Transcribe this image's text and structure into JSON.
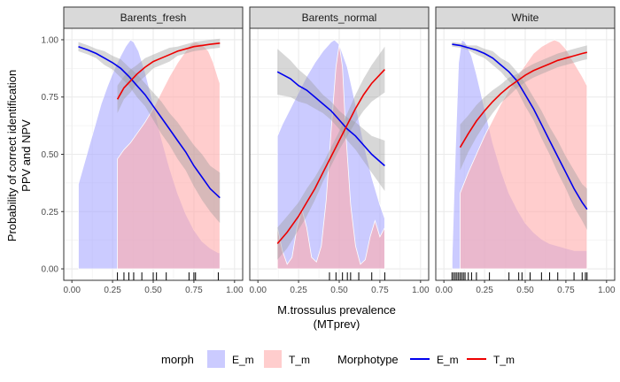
{
  "chart_data": {
    "type": "line",
    "xlabel_line1": "M.trossulus prevalence",
    "xlabel_line2": "(MTprev)",
    "ylabel_line1": "Probability of correct identification",
    "ylabel_line2": "PPV and NPV",
    "xlim": [
      -0.05,
      1.05
    ],
    "ylim": [
      -0.05,
      1.05
    ],
    "x_ticks": [
      0,
      0.25,
      0.5,
      0.75,
      1
    ],
    "x_tick_labels": [
      "0.00",
      "0.25",
      "0.50",
      "0.75",
      "1.00"
    ],
    "y_ticks": [
      0,
      0.25,
      0.5,
      0.75,
      1
    ],
    "y_tick_labels": [
      "0.00",
      "0.25",
      "0.50",
      "0.75",
      "1.00"
    ],
    "grid": true,
    "colors": {
      "E_m_line": "#0000ee",
      "T_m_line": "#ee0000",
      "E_m_fill": "#a8a8ff",
      "T_m_fill": "#ffacac",
      "ribbon": "#9a9a9a",
      "strip_bg": "#d9d9d9",
      "grid": "#ebebeb"
    },
    "legend": {
      "position": "bottom",
      "fill_title": "morph",
      "fill_entries": [
        "E_m",
        "T_m"
      ],
      "line_title": "Morphotype",
      "line_entries": [
        "E_m",
        "T_m"
      ]
    },
    "panels": [
      {
        "title": "Barents_fresh",
        "rug": [
          0.28,
          0.32,
          0.35,
          0.38,
          0.43,
          0.5,
          0.52,
          0.58,
          0.72,
          0.75,
          0.76,
          0.9
        ],
        "density_E": {
          "x": [
            0.04,
            0.06,
            0.1,
            0.14,
            0.18,
            0.22,
            0.26,
            0.3,
            0.33,
            0.36,
            0.38,
            0.41,
            0.45,
            0.5,
            0.55,
            0.6,
            0.65,
            0.7,
            0.75,
            0.8,
            0.85,
            0.9,
            0.91
          ],
          "y": [
            0.37,
            0.42,
            0.52,
            0.62,
            0.72,
            0.8,
            0.87,
            0.93,
            0.97,
            1.0,
            0.99,
            0.95,
            0.86,
            0.72,
            0.57,
            0.44,
            0.33,
            0.24,
            0.17,
            0.12,
            0.09,
            0.07,
            0.07
          ]
        },
        "density_T": {
          "x": [
            0.28,
            0.32,
            0.36,
            0.4,
            0.45,
            0.5,
            0.55,
            0.6,
            0.65,
            0.7,
            0.73,
            0.76,
            0.8,
            0.84,
            0.87,
            0.9,
            0.91
          ],
          "y": [
            0.48,
            0.52,
            0.55,
            0.59,
            0.64,
            0.7,
            0.77,
            0.84,
            0.9,
            0.95,
            0.98,
            0.99,
            0.98,
            0.95,
            0.9,
            0.83,
            0.81
          ]
        },
        "line_E": {
          "x": [
            0.04,
            0.1,
            0.15,
            0.2,
            0.25,
            0.3,
            0.35,
            0.4,
            0.45,
            0.5,
            0.55,
            0.6,
            0.65,
            0.7,
            0.75,
            0.8,
            0.85,
            0.91
          ],
          "y": [
            0.97,
            0.955,
            0.94,
            0.92,
            0.9,
            0.875,
            0.84,
            0.8,
            0.76,
            0.71,
            0.66,
            0.61,
            0.56,
            0.51,
            0.45,
            0.4,
            0.35,
            0.31
          ],
          "ci": [
            0.02,
            0.02,
            0.02,
            0.03,
            0.03,
            0.04,
            0.04,
            0.05,
            0.05,
            0.06,
            0.07,
            0.07,
            0.08,
            0.08,
            0.09,
            0.1,
            0.1,
            0.11
          ]
        },
        "line_T": {
          "x": [
            0.28,
            0.32,
            0.36,
            0.4,
            0.45,
            0.5,
            0.55,
            0.6,
            0.65,
            0.7,
            0.75,
            0.8,
            0.85,
            0.91
          ],
          "y": [
            0.74,
            0.79,
            0.82,
            0.85,
            0.88,
            0.905,
            0.92,
            0.935,
            0.95,
            0.96,
            0.97,
            0.975,
            0.98,
            0.985
          ],
          "ci": [
            0.06,
            0.05,
            0.05,
            0.04,
            0.04,
            0.03,
            0.03,
            0.03,
            0.02,
            0.02,
            0.02,
            0.02,
            0.02,
            0.02
          ]
        }
      },
      {
        "title": "Barents_normal",
        "rug": [
          0.44,
          0.48,
          0.52,
          0.55,
          0.57,
          0.62,
          0.7,
          0.78
        ],
        "density_E": {
          "x": [
            0.12,
            0.15,
            0.2,
            0.25,
            0.3,
            0.35,
            0.4,
            0.45,
            0.47,
            0.5,
            0.55,
            0.6,
            0.65,
            0.7,
            0.75,
            0.78
          ],
          "y": [
            0.58,
            0.63,
            0.7,
            0.77,
            0.84,
            0.9,
            0.95,
            0.99,
            1.0,
            0.98,
            0.88,
            0.72,
            0.55,
            0.4,
            0.28,
            0.22
          ]
        },
        "density_T": {
          "x": [
            0.12,
            0.15,
            0.18,
            0.21,
            0.24,
            0.27,
            0.3,
            0.33,
            0.36,
            0.39,
            0.42,
            0.45,
            0.48,
            0.5,
            0.52,
            0.54,
            0.57,
            0.6,
            0.63,
            0.66,
            0.69,
            0.72,
            0.75,
            0.78
          ],
          "y": [
            0.18,
            0.08,
            0.02,
            0.05,
            0.18,
            0.26,
            0.18,
            0.05,
            0.03,
            0.1,
            0.3,
            0.6,
            0.88,
            0.98,
            0.88,
            0.6,
            0.28,
            0.1,
            0.02,
            0.04,
            0.14,
            0.21,
            0.14,
            0.18
          ]
        },
        "line_E": {
          "x": [
            0.12,
            0.2,
            0.25,
            0.3,
            0.35,
            0.4,
            0.45,
            0.5,
            0.55,
            0.6,
            0.65,
            0.7,
            0.78
          ],
          "y": [
            0.86,
            0.83,
            0.8,
            0.78,
            0.75,
            0.72,
            0.69,
            0.65,
            0.61,
            0.58,
            0.54,
            0.5,
            0.45
          ],
          "ci": [
            0.1,
            0.08,
            0.07,
            0.06,
            0.05,
            0.04,
            0.04,
            0.04,
            0.05,
            0.06,
            0.07,
            0.08,
            0.11
          ]
        },
        "line_T": {
          "x": [
            0.12,
            0.18,
            0.25,
            0.3,
            0.35,
            0.4,
            0.45,
            0.5,
            0.55,
            0.6,
            0.65,
            0.7,
            0.78
          ],
          "y": [
            0.11,
            0.16,
            0.23,
            0.29,
            0.35,
            0.42,
            0.49,
            0.56,
            0.63,
            0.7,
            0.76,
            0.81,
            0.87
          ],
          "ci": [
            0.07,
            0.07,
            0.06,
            0.06,
            0.05,
            0.04,
            0.04,
            0.04,
            0.05,
            0.06,
            0.07,
            0.08,
            0.1
          ]
        }
      },
      {
        "title": "White",
        "rug": [
          0.05,
          0.06,
          0.07,
          0.08,
          0.09,
          0.1,
          0.11,
          0.12,
          0.13,
          0.15,
          0.17,
          0.2,
          0.28,
          0.4,
          0.46,
          0.48,
          0.53,
          0.6,
          0.65,
          0.7,
          0.8,
          0.85,
          0.87,
          0.88
        ],
        "density_E": {
          "x": [
            0.05,
            0.07,
            0.09,
            0.11,
            0.13,
            0.15,
            0.17,
            0.2,
            0.25,
            0.3,
            0.35,
            0.4,
            0.45,
            0.5,
            0.55,
            0.6,
            0.65,
            0.7,
            0.75,
            0.8,
            0.85,
            0.88
          ],
          "y": [
            0.05,
            0.5,
            0.9,
            1.0,
            0.99,
            0.96,
            0.93,
            0.85,
            0.7,
            0.55,
            0.43,
            0.33,
            0.26,
            0.2,
            0.16,
            0.13,
            0.11,
            0.1,
            0.09,
            0.08,
            0.08,
            0.08
          ]
        },
        "density_T": {
          "x": [
            0.1,
            0.15,
            0.2,
            0.25,
            0.3,
            0.35,
            0.4,
            0.45,
            0.5,
            0.55,
            0.6,
            0.65,
            0.68,
            0.71,
            0.75,
            0.8,
            0.85,
            0.88
          ],
          "y": [
            0.33,
            0.42,
            0.5,
            0.58,
            0.65,
            0.72,
            0.78,
            0.84,
            0.89,
            0.94,
            0.97,
            0.99,
            1.0,
            0.99,
            0.96,
            0.9,
            0.84,
            0.8
          ]
        },
        "line_E": {
          "x": [
            0.05,
            0.1,
            0.15,
            0.2,
            0.25,
            0.3,
            0.35,
            0.4,
            0.45,
            0.5,
            0.55,
            0.6,
            0.65,
            0.7,
            0.75,
            0.8,
            0.85,
            0.88
          ],
          "y": [
            0.98,
            0.975,
            0.965,
            0.955,
            0.94,
            0.92,
            0.89,
            0.86,
            0.82,
            0.76,
            0.7,
            0.63,
            0.56,
            0.49,
            0.42,
            0.35,
            0.29,
            0.26
          ],
          "ci": [
            0.01,
            0.01,
            0.01,
            0.02,
            0.02,
            0.03,
            0.03,
            0.04,
            0.04,
            0.05,
            0.05,
            0.06,
            0.06,
            0.07,
            0.07,
            0.08,
            0.08,
            0.09
          ]
        },
        "line_T": {
          "x": [
            0.1,
            0.15,
            0.2,
            0.25,
            0.3,
            0.35,
            0.4,
            0.45,
            0.5,
            0.55,
            0.6,
            0.65,
            0.7,
            0.75,
            0.8,
            0.85,
            0.88
          ],
          "y": [
            0.53,
            0.59,
            0.645,
            0.69,
            0.73,
            0.765,
            0.795,
            0.82,
            0.845,
            0.865,
            0.88,
            0.895,
            0.91,
            0.92,
            0.93,
            0.94,
            0.945
          ],
          "ci": [
            0.1,
            0.08,
            0.07,
            0.06,
            0.05,
            0.04,
            0.04,
            0.03,
            0.03,
            0.03,
            0.03,
            0.03,
            0.03,
            0.03,
            0.03,
            0.03,
            0.03
          ]
        }
      }
    ]
  }
}
